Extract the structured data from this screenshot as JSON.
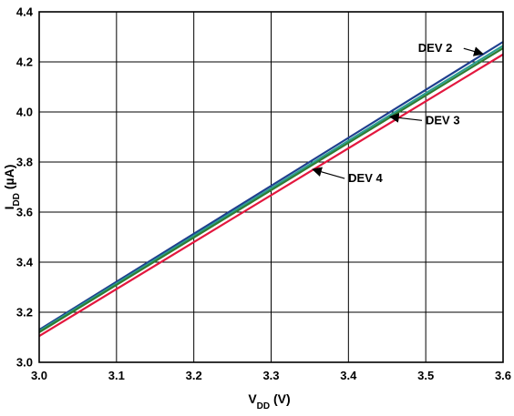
{
  "chart_data": {
    "type": "line",
    "title": "",
    "xlabel": {
      "main": "V",
      "sub": "DD",
      "unit": " (V)"
    },
    "ylabel": {
      "main": "I",
      "sub": "DD",
      "unit": " (µA)"
    },
    "xlim": [
      3.0,
      3.6
    ],
    "ylim": [
      3.0,
      4.4
    ],
    "grid": true,
    "x_ticks": [
      "3.0",
      "3.1",
      "3.2",
      "3.3",
      "3.4",
      "3.5",
      "3.6"
    ],
    "y_ticks": [
      "3.0",
      "3.2",
      "3.4",
      "3.6",
      "3.8",
      "4.0",
      "4.2",
      "4.4"
    ],
    "series": [
      {
        "name": "DEV 2",
        "color": "#1f3f8f",
        "x": [
          3.0,
          3.6
        ],
        "y": [
          3.13,
          4.28
        ]
      },
      {
        "name": "",
        "color": "#2a9d8f",
        "x": [
          3.0,
          3.6
        ],
        "y": [
          3.125,
          4.265
        ]
      },
      {
        "name": "DEV 3",
        "color": "#2e7d32",
        "x": [
          3.0,
          3.6
        ],
        "y": [
          3.12,
          4.255
        ]
      },
      {
        "name": "DEV 4",
        "color": "#e3173e",
        "x": [
          3.0,
          3.6
        ],
        "y": [
          3.105,
          4.23
        ]
      }
    ],
    "annotations": [
      {
        "text": "DEV 2",
        "series": 0,
        "at_x": 3.575
      },
      {
        "text": "DEV 3",
        "series": 2,
        "at_x": 3.455
      },
      {
        "text": "DEV 4",
        "series": 3,
        "at_x": 3.355
      }
    ]
  }
}
